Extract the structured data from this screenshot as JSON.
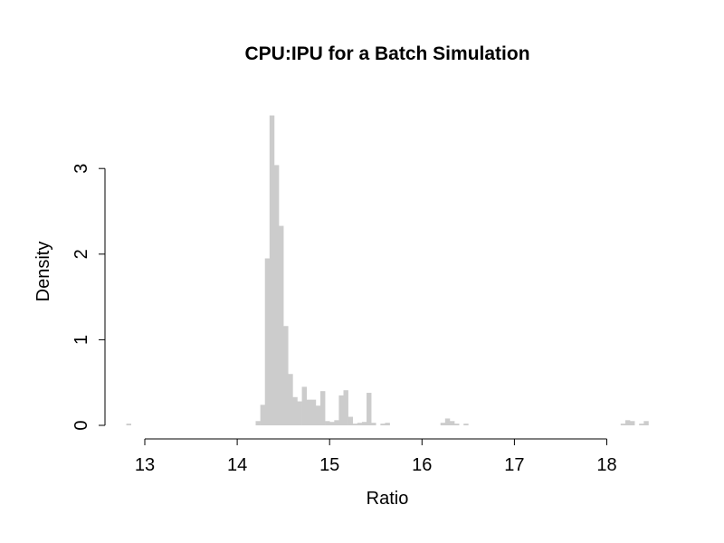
{
  "chart_data": {
    "type": "bar",
    "title": "CPU:IPU for a Batch Simulation",
    "xlabel": "Ratio",
    "ylabel": "Density",
    "xlim": [
      12.8,
      18.5
    ],
    "ylim": [
      0,
      3.6
    ],
    "x_ticks": [
      13,
      14,
      15,
      16,
      17,
      18
    ],
    "y_ticks": [
      0,
      1,
      2,
      3
    ],
    "bin_width": 0.05,
    "grid": false,
    "color": "#cccccc",
    "bins": [
      {
        "x0": 12.8,
        "density": 0.02
      },
      {
        "x0": 14.2,
        "density": 0.05
      },
      {
        "x0": 14.25,
        "density": 0.24
      },
      {
        "x0": 14.3,
        "density": 1.95
      },
      {
        "x0": 14.35,
        "density": 3.62
      },
      {
        "x0": 14.4,
        "density": 3.04
      },
      {
        "x0": 14.45,
        "density": 2.33
      },
      {
        "x0": 14.5,
        "density": 1.16
      },
      {
        "x0": 14.55,
        "density": 0.6
      },
      {
        "x0": 14.6,
        "density": 0.33
      },
      {
        "x0": 14.65,
        "density": 0.28
      },
      {
        "x0": 14.7,
        "density": 0.45
      },
      {
        "x0": 14.75,
        "density": 0.3
      },
      {
        "x0": 14.8,
        "density": 0.3
      },
      {
        "x0": 14.85,
        "density": 0.23
      },
      {
        "x0": 14.9,
        "density": 0.4
      },
      {
        "x0": 14.95,
        "density": 0.05
      },
      {
        "x0": 15.0,
        "density": 0.04
      },
      {
        "x0": 15.05,
        "density": 0.06
      },
      {
        "x0": 15.1,
        "density": 0.35
      },
      {
        "x0": 15.15,
        "density": 0.41
      },
      {
        "x0": 15.2,
        "density": 0.1
      },
      {
        "x0": 15.25,
        "density": 0.02
      },
      {
        "x0": 15.3,
        "density": 0.03
      },
      {
        "x0": 15.35,
        "density": 0.04
      },
      {
        "x0": 15.4,
        "density": 0.38
      },
      {
        "x0": 15.45,
        "density": 0.03
      },
      {
        "x0": 15.55,
        "density": 0.02
      },
      {
        "x0": 15.6,
        "density": 0.03
      },
      {
        "x0": 16.2,
        "density": 0.03
      },
      {
        "x0": 16.25,
        "density": 0.08
      },
      {
        "x0": 16.3,
        "density": 0.05
      },
      {
        "x0": 16.35,
        "density": 0.02
      },
      {
        "x0": 16.45,
        "density": 0.02
      },
      {
        "x0": 18.15,
        "density": 0.02
      },
      {
        "x0": 18.2,
        "density": 0.06
      },
      {
        "x0": 18.25,
        "density": 0.05
      },
      {
        "x0": 18.35,
        "density": 0.02
      },
      {
        "x0": 18.4,
        "density": 0.05
      }
    ]
  }
}
